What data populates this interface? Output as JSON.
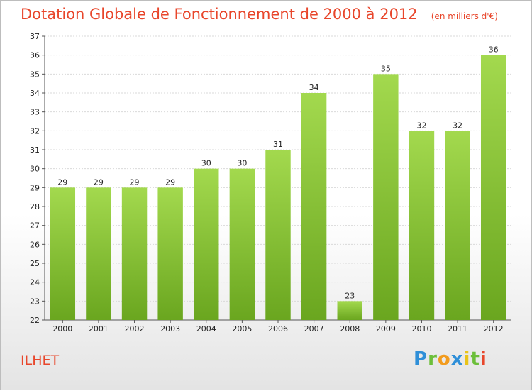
{
  "header": {
    "title": "Dotation Globale de Fonctionnement de 2000 à 2012",
    "subtitle": "(en milliers d'€)"
  },
  "commune": "ILHET",
  "logo": {
    "text": "Proxiti"
  },
  "chart_data": {
    "type": "bar",
    "title": "Dotation Globale de Fonctionnement de 2000 à 2012",
    "subtitle": "(en milliers d'€)",
    "categories": [
      "2000",
      "2001",
      "2002",
      "2003",
      "2004",
      "2005",
      "2006",
      "2007",
      "2008",
      "2009",
      "2010",
      "2011",
      "2012"
    ],
    "values": [
      29,
      29,
      29,
      29,
      30,
      30,
      31,
      34,
      23,
      35,
      32,
      32,
      36
    ],
    "ylim": [
      22,
      37
    ],
    "yticks": [
      22,
      23,
      24,
      25,
      26,
      27,
      28,
      29,
      30,
      31,
      32,
      33,
      34,
      35,
      36,
      37
    ],
    "grid": true,
    "bar_color": "#7cb82f",
    "bar_color_light": "#9fd44a"
  }
}
